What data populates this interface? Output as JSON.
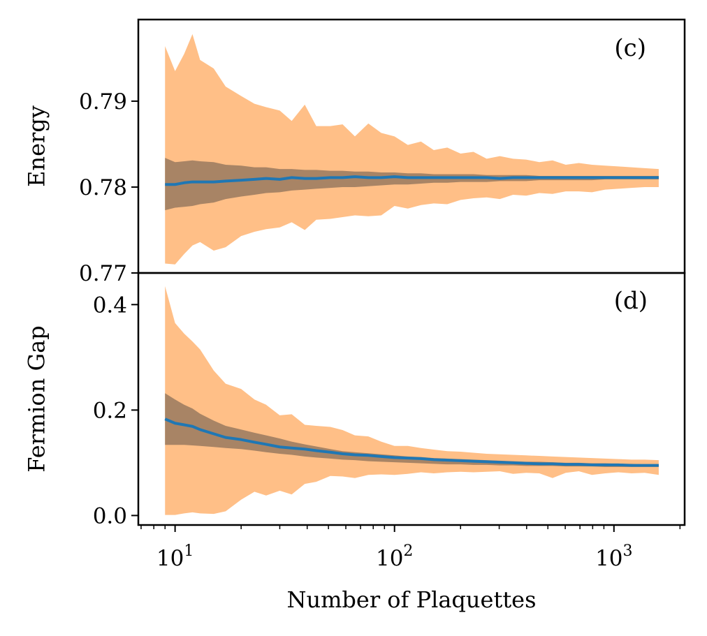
{
  "chart_data": [
    {
      "type": "area",
      "panel_label": "(c)",
      "ylabel": "Energy",
      "xscale": "log",
      "xlim": [
        6.8,
        2100
      ],
      "ylim": [
        0.77,
        0.7995
      ],
      "yticks": [
        0.77,
        0.78,
        0.79
      ],
      "ytick_labels": [
        "0.77",
        "0.78",
        "0.79"
      ],
      "colors": {
        "outer_band": "#ffbf87",
        "inner_band": "#a88465",
        "mean_line": "#1f77b4"
      },
      "x": [
        9,
        10,
        11,
        12,
        13,
        15,
        17,
        20,
        23,
        26,
        30,
        34,
        39,
        44,
        51,
        58,
        66,
        76,
        87,
        100,
        115,
        132,
        151,
        174,
        200,
        229,
        263,
        302,
        347,
        398,
        457,
        525,
        603,
        692,
        794,
        912,
        1047,
        1202,
        1380,
        1600
      ],
      "series": [
        {
          "role": "outer_band",
          "upper": [
            0.7964,
            0.7935,
            0.7955,
            0.7978,
            0.7948,
            0.7938,
            0.7917,
            0.7906,
            0.7897,
            0.7893,
            0.7889,
            0.7877,
            0.7896,
            0.7871,
            0.7871,
            0.7873,
            0.7859,
            0.7874,
            0.7863,
            0.7859,
            0.7849,
            0.7853,
            0.7843,
            0.7846,
            0.7839,
            0.7841,
            0.7833,
            0.7836,
            0.7833,
            0.7832,
            0.7829,
            0.7831,
            0.7826,
            0.7828,
            0.7826,
            0.7825,
            0.7824,
            0.7823,
            0.7822,
            0.7821
          ],
          "lower": [
            0.7711,
            0.771,
            0.7722,
            0.7732,
            0.7736,
            0.7726,
            0.773,
            0.7743,
            0.7748,
            0.7751,
            0.7753,
            0.7759,
            0.775,
            0.7762,
            0.7763,
            0.7765,
            0.7767,
            0.7766,
            0.7767,
            0.7778,
            0.7775,
            0.7779,
            0.7781,
            0.778,
            0.7785,
            0.7787,
            0.7788,
            0.7786,
            0.7791,
            0.779,
            0.7793,
            0.7792,
            0.7795,
            0.7795,
            0.7794,
            0.7797,
            0.7798,
            0.7799,
            0.78,
            0.78
          ]
        },
        {
          "role": "inner_band",
          "upper": [
            0.7834,
            0.7829,
            0.783,
            0.7831,
            0.783,
            0.7829,
            0.7826,
            0.7825,
            0.7823,
            0.7823,
            0.7821,
            0.7821,
            0.782,
            0.782,
            0.7819,
            0.7819,
            0.7818,
            0.7818,
            0.7817,
            0.7817,
            0.7816,
            0.7816,
            0.7815,
            0.7815,
            0.7815,
            0.7815,
            0.7814,
            0.7814,
            0.7814,
            0.7814,
            0.7813,
            0.7813,
            0.7813,
            0.7813,
            0.7813,
            0.7813,
            0.7813,
            0.7813,
            0.7813,
            0.7813
          ],
          "lower": [
            0.7773,
            0.7776,
            0.7777,
            0.7778,
            0.778,
            0.7782,
            0.7786,
            0.7789,
            0.7791,
            0.7793,
            0.7794,
            0.7796,
            0.7797,
            0.7798,
            0.7799,
            0.78,
            0.78,
            0.7801,
            0.7802,
            0.7803,
            0.7803,
            0.7804,
            0.7805,
            0.7805,
            0.7806,
            0.7806,
            0.7806,
            0.7807,
            0.7807,
            0.7807,
            0.7808,
            0.7808,
            0.7808,
            0.7808,
            0.7808,
            0.7809,
            0.7809,
            0.7809,
            0.7809,
            0.7809
          ]
        },
        {
          "role": "mean_line",
          "values": [
            0.7803,
            0.7803,
            0.7805,
            0.7806,
            0.7806,
            0.7806,
            0.7807,
            0.7808,
            0.7809,
            0.781,
            0.7809,
            0.7811,
            0.781,
            0.781,
            0.7811,
            0.7811,
            0.7812,
            0.7811,
            0.7811,
            0.7812,
            0.7811,
            0.7811,
            0.7811,
            0.7811,
            0.7811,
            0.7811,
            0.7811,
            0.781,
            0.7811,
            0.7811,
            0.7811,
            0.7811,
            0.7811,
            0.7811,
            0.7811,
            0.7811,
            0.7811,
            0.7811,
            0.7811,
            0.7811
          ]
        }
      ]
    },
    {
      "type": "area",
      "panel_label": "(d)",
      "ylabel": "Fermion Gap",
      "xlabel": "Number of Plaquettes",
      "xscale": "log",
      "xlim": [
        6.8,
        2100
      ],
      "ylim": [
        -0.018,
        0.46
      ],
      "yticks": [
        0.0,
        0.2,
        0.4
      ],
      "ytick_labels": [
        "0.0",
        "0.2",
        "0.4"
      ],
      "xticks": [
        10,
        100,
        1000
      ],
      "xtick_labels": [
        [
          "10",
          "1"
        ],
        [
          "10",
          "2"
        ],
        [
          "10",
          "3"
        ]
      ],
      "colors": {
        "outer_band": "#ffbf87",
        "inner_band": "#a88465",
        "mean_line": "#1f77b4"
      },
      "x": [
        9,
        10,
        11,
        12,
        13,
        15,
        17,
        20,
        23,
        26,
        30,
        34,
        39,
        44,
        51,
        58,
        66,
        76,
        87,
        100,
        115,
        132,
        151,
        174,
        200,
        229,
        263,
        302,
        347,
        398,
        457,
        525,
        603,
        692,
        794,
        912,
        1047,
        1202,
        1380,
        1600
      ],
      "series": [
        {
          "role": "outer_band",
          "upper": [
            0.435,
            0.365,
            0.345,
            0.33,
            0.315,
            0.275,
            0.25,
            0.24,
            0.22,
            0.21,
            0.19,
            0.192,
            0.172,
            0.17,
            0.168,
            0.162,
            0.152,
            0.15,
            0.14,
            0.132,
            0.132,
            0.128,
            0.125,
            0.122,
            0.121,
            0.119,
            0.117,
            0.116,
            0.115,
            0.114,
            0.113,
            0.112,
            0.111,
            0.11,
            0.109,
            0.108,
            0.107,
            0.106,
            0.106,
            0.105
          ],
          "lower": [
            0.001,
            0.001,
            0.004,
            0.006,
            0.004,
            0.003,
            0.008,
            0.03,
            0.045,
            0.038,
            0.047,
            0.04,
            0.06,
            0.064,
            0.075,
            0.074,
            0.071,
            0.077,
            0.078,
            0.077,
            0.079,
            0.082,
            0.08,
            0.082,
            0.083,
            0.082,
            0.083,
            0.084,
            0.079,
            0.081,
            0.08,
            0.071,
            0.081,
            0.084,
            0.077,
            0.08,
            0.082,
            0.08,
            0.081,
            0.077
          ]
        },
        {
          "role": "inner_band",
          "upper": [
            0.232,
            0.22,
            0.21,
            0.203,
            0.193,
            0.18,
            0.17,
            0.163,
            0.157,
            0.152,
            0.146,
            0.14,
            0.135,
            0.131,
            0.126,
            0.122,
            0.12,
            0.118,
            0.116,
            0.114,
            0.112,
            0.111,
            0.109,
            0.108,
            0.107,
            0.106,
            0.105,
            0.104,
            0.103,
            0.102,
            0.102,
            0.101,
            0.1,
            0.1,
            0.099,
            0.099,
            0.098,
            0.098,
            0.097,
            0.097
          ],
          "lower": [
            0.134,
            0.134,
            0.134,
            0.133,
            0.132,
            0.13,
            0.128,
            0.126,
            0.123,
            0.12,
            0.117,
            0.115,
            0.112,
            0.11,
            0.108,
            0.106,
            0.105,
            0.103,
            0.102,
            0.101,
            0.1,
            0.099,
            0.098,
            0.097,
            0.097,
            0.096,
            0.096,
            0.095,
            0.095,
            0.094,
            0.094,
            0.094,
            0.093,
            0.093,
            0.093,
            0.092,
            0.092,
            0.092,
            0.092,
            0.092
          ]
        },
        {
          "role": "mean_line",
          "values": [
            0.183,
            0.175,
            0.172,
            0.169,
            0.163,
            0.155,
            0.148,
            0.144,
            0.139,
            0.135,
            0.13,
            0.128,
            0.126,
            0.123,
            0.12,
            0.117,
            0.115,
            0.114,
            0.112,
            0.11,
            0.109,
            0.108,
            0.106,
            0.105,
            0.104,
            0.103,
            0.102,
            0.101,
            0.1,
            0.099,
            0.098,
            0.098,
            0.097,
            0.097,
            0.096,
            0.096,
            0.096,
            0.095,
            0.095,
            0.095
          ]
        }
      ]
    }
  ]
}
